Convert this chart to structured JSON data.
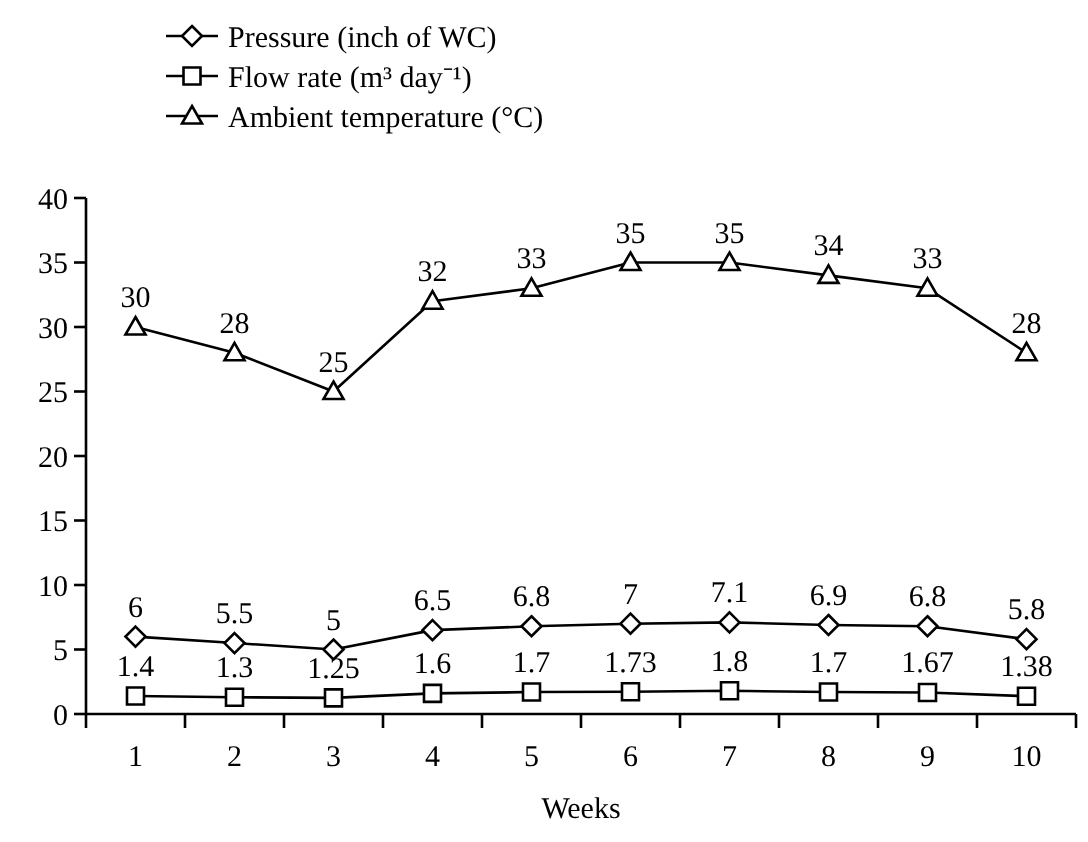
{
  "chart_data": {
    "type": "line",
    "xlabel": "Weeks",
    "categories": [
      "1",
      "2",
      "3",
      "4",
      "5",
      "6",
      "7",
      "8",
      "9",
      "10"
    ],
    "series": [
      {
        "name": "Pressure (inch of WC)",
        "color": "#000000",
        "marker": "diamond",
        "values": [
          6,
          5.5,
          5,
          6.5,
          6.8,
          7,
          7.1,
          6.9,
          6.8,
          5.8
        ]
      },
      {
        "name": "Flow rate (m³ day⁻¹)",
        "color": "#000000",
        "marker": "square",
        "values": [
          1.4,
          1.3,
          1.25,
          1.6,
          1.7,
          1.73,
          1.8,
          1.7,
          1.67,
          1.38
        ]
      },
      {
        "name": "Ambient temperature (°C)",
        "color": "#000000",
        "marker": "triangle",
        "values": [
          30,
          28,
          25,
          32,
          33,
          35,
          35,
          34,
          33,
          28
        ]
      }
    ],
    "ylim": [
      0,
      40
    ],
    "yticks": [
      0,
      5,
      10,
      15,
      20,
      25,
      30,
      35,
      40
    ],
    "grid": false,
    "legend": "top left",
    "data_labels": true,
    "line_style": "solid"
  }
}
